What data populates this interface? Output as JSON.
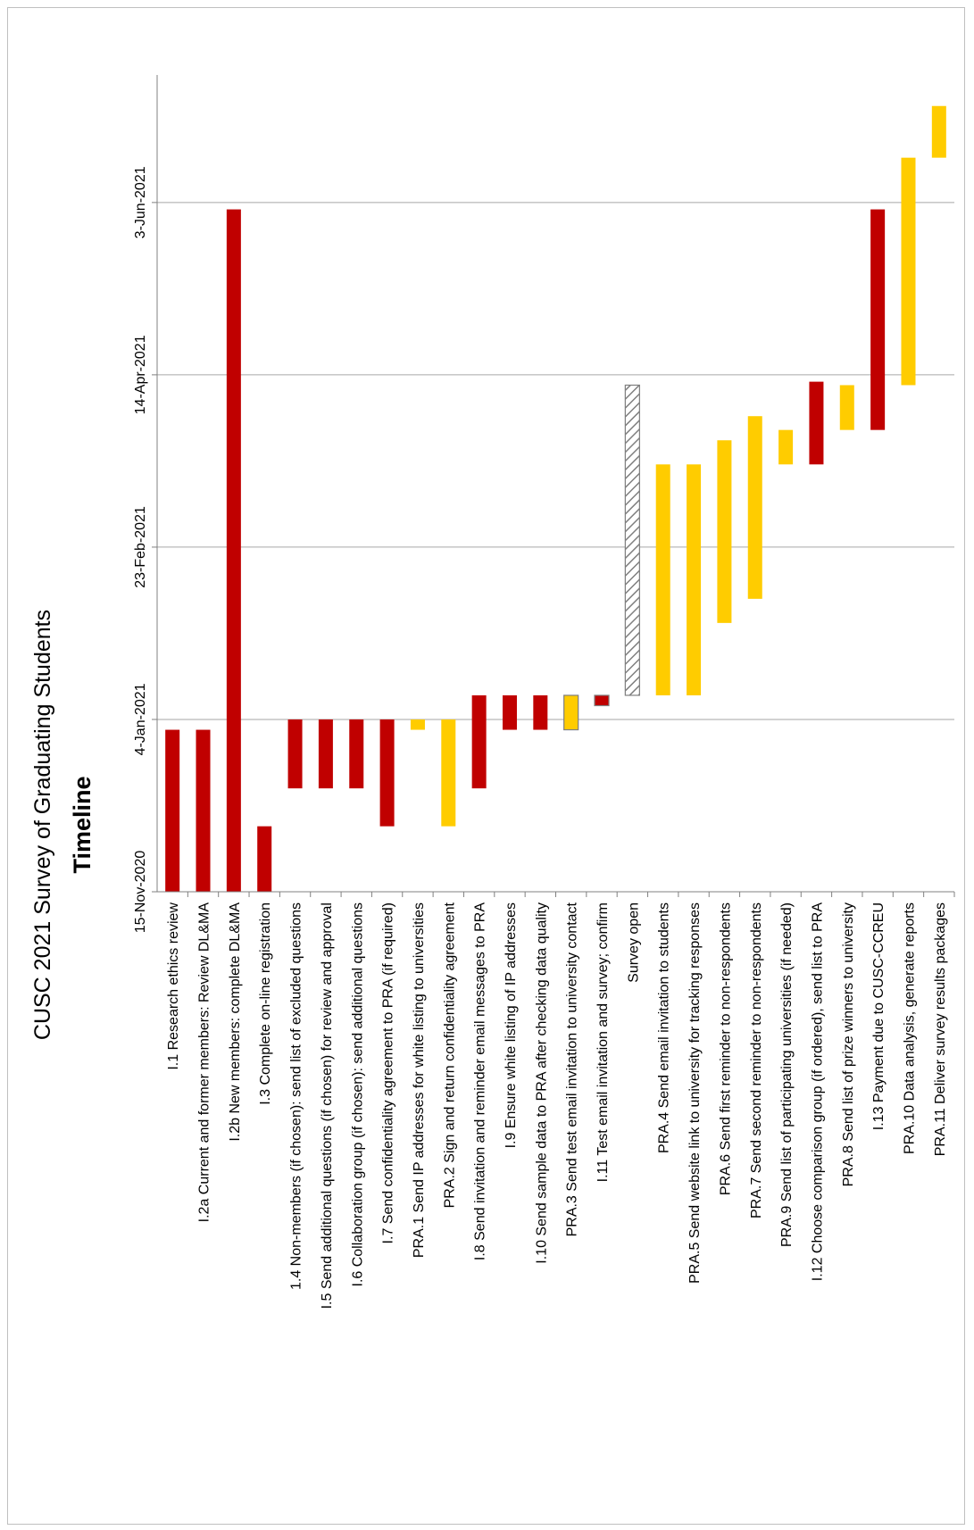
{
  "chart_data": {
    "type": "bar",
    "orientation": "gantt",
    "title": "CUSC 2021 Survey of Graduating Students",
    "subtitle": "Timeline",
    "axis": {
      "ticks": [
        "15-Nov-2020",
        "4-Jan-2021",
        "23-Feb-2021",
        "14-Apr-2021",
        "3-Jun-2021"
      ],
      "range": [
        "2020-11-15",
        "2021-07-10"
      ],
      "grid": true
    },
    "colors": {
      "red": "#c00000",
      "yellow": "#ffcc00",
      "hatch": "#7f7f7f",
      "outline": "#7f7f7f",
      "grid": "#a6a6a6",
      "axis": "#808080"
    },
    "tasks": [
      {
        "label": "I.1 Research ethics review",
        "start": "2020-11-15",
        "end": "2021-01-01",
        "color": "red"
      },
      {
        "label": "I.2a Current and former members: Review DL&MA",
        "start": "2020-11-15",
        "end": "2021-01-01",
        "color": "red"
      },
      {
        "label": "I.2b New members: complete DL&MA",
        "start": "2020-11-15",
        "end": "2021-06-01",
        "color": "red"
      },
      {
        "label": "I.3 Complete on-line registration",
        "start": "2020-11-15",
        "end": "2020-12-04",
        "color": "red"
      },
      {
        "label": "1.4 Non-members (if chosen): send list of excluded questions",
        "start": "2020-12-15",
        "end": "2021-01-04",
        "color": "red"
      },
      {
        "label": "I.5 Send additional questions (if chosen) for review and approval",
        "start": "2020-12-15",
        "end": "2021-01-04",
        "color": "red"
      },
      {
        "label": "I.6 Collaboration group (if chosen): send additional questions",
        "start": "2020-12-15",
        "end": "2021-01-04",
        "color": "red"
      },
      {
        "label": "I.7 Send confidentiality agreement to PRA (if required)",
        "start": "2020-12-04",
        "end": "2021-01-04",
        "color": "red"
      },
      {
        "label": "PRA.1 Send IP addresses for white listing to universities",
        "start": "2021-01-01",
        "end": "2021-01-04",
        "color": "yellow"
      },
      {
        "label": "PRA.2 Sign and return confidentiality agreement",
        "start": "2020-12-04",
        "end": "2021-01-04",
        "color": "yellow"
      },
      {
        "label": "I.8 Send invitation and reminder email messages to PRA",
        "start": "2020-12-15",
        "end": "2021-01-11",
        "color": "red"
      },
      {
        "label": "I.9 Ensure white listing of IP addresses",
        "start": "2021-01-01",
        "end": "2021-01-11",
        "color": "red"
      },
      {
        "label": "I.10 Send sample data to PRA after checking data quality",
        "start": "2021-01-01",
        "end": "2021-01-11",
        "color": "red"
      },
      {
        "label": "PRA.3 Send test email invitation to university contact",
        "start": "2021-01-01",
        "end": "2021-01-11",
        "color": "yellow",
        "outline": true
      },
      {
        "label": "I.11 Test email invitation and survey; confirm",
        "start": "2021-01-08",
        "end": "2021-01-11",
        "color": "red",
        "outline": true
      },
      {
        "label": "Survey open",
        "start": "2021-01-11",
        "end": "2021-04-11",
        "color": "hatch"
      },
      {
        "label": "PRA.4 Send email invitation to students",
        "start": "2021-01-11",
        "end": "2021-03-19",
        "color": "yellow"
      },
      {
        "label": "PRA.5 Send website link to university for tracking responses",
        "start": "2021-01-11",
        "end": "2021-03-19",
        "color": "yellow"
      },
      {
        "label": "PRA.6 Send first reminder to non-respondents",
        "start": "2021-02-01",
        "end": "2021-03-26",
        "color": "yellow"
      },
      {
        "label": "PRA.7 Send second reminder to non-respondents",
        "start": "2021-02-08",
        "end": "2021-04-02",
        "color": "yellow"
      },
      {
        "label": "PRA.9 Send list of participating universities (if needed)",
        "start": "2021-03-19",
        "end": "2021-03-29",
        "color": "yellow"
      },
      {
        "label": "I.12 Choose comparison group (if ordered), send list to PRA",
        "start": "2021-03-19",
        "end": "2021-04-12",
        "color": "red"
      },
      {
        "label": "PRA.8 Send list of prize winners to university",
        "start": "2021-03-29",
        "end": "2021-04-11",
        "color": "yellow"
      },
      {
        "label": "I.13 Payment due to CUSC-CCREU",
        "start": "2021-03-29",
        "end": "2021-06-01",
        "color": "red"
      },
      {
        "label": "PRA.10 Data analysis, generate reports",
        "start": "2021-04-11",
        "end": "2021-06-16",
        "color": "yellow"
      },
      {
        "label": "PRA.11 Deliver survey results packages",
        "start": "2021-06-16",
        "end": "2021-07-01",
        "color": "yellow"
      }
    ]
  }
}
